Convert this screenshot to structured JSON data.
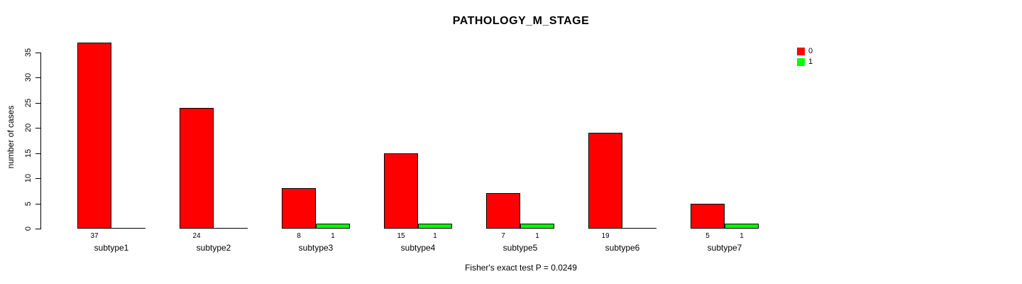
{
  "chart_data": {
    "type": "bar",
    "title": "PATHOLOGY_M_STAGE",
    "ylabel": "number of cases",
    "xlabel": "",
    "categories": [
      "subtype1",
      "subtype2",
      "subtype3",
      "subtype4",
      "subtype5",
      "subtype6",
      "subtype7"
    ],
    "series": [
      {
        "name": "0",
        "color": "#FF0000",
        "values": [
          37,
          24,
          8,
          15,
          7,
          19,
          5
        ],
        "value_labels": [
          "37",
          "24",
          "8",
          "15",
          "7",
          "19",
          "5"
        ]
      },
      {
        "name": "1",
        "color": "#00FF00",
        "values": [
          0,
          0,
          1,
          1,
          1,
          0,
          1
        ],
        "value_labels": [
          "",
          "",
          "1",
          "1",
          "1",
          "",
          "1"
        ]
      }
    ],
    "yticks": [
      0,
      5,
      10,
      15,
      20,
      25,
      30,
      35
    ],
    "ylim": [
      0,
      37
    ],
    "grid": false,
    "legend_position": "top-right",
    "caption": "Fisher's exact test P = 0.0249",
    "colors": {
      "bar_border": "#000000",
      "axis": "#000000",
      "background": "#FFFFFF"
    }
  }
}
